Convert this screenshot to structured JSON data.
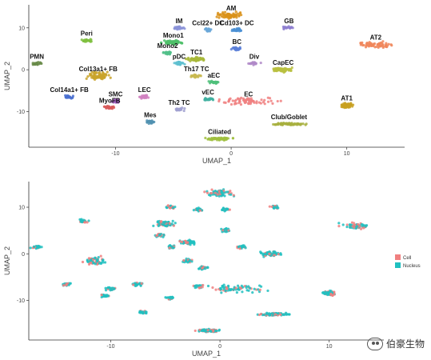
{
  "chart_data": [
    {
      "type": "scatter",
      "xlabel": "UMAP_1",
      "ylabel": "UMAP_2",
      "xlim": [
        -17.5,
        15
      ],
      "ylim": [
        -18.5,
        15.5
      ],
      "xticks": [
        -10,
        0,
        10
      ],
      "yticks": [
        -10,
        0,
        10
      ],
      "grid": false,
      "legend": "none",
      "clusters": [
        {
          "name": "AM",
          "x": 0,
          "y": 13,
          "color": "#d9921a"
        },
        {
          "name": "IM",
          "x": -4.5,
          "y": 10,
          "color": "#8a92d8"
        },
        {
          "name": "Ccl22+ DC",
          "x": -2,
          "y": 9.5,
          "color": "#6aa7d8"
        },
        {
          "name": "Cd103+ DC",
          "x": 0.5,
          "y": 9.5,
          "color": "#4a8fd4"
        },
        {
          "name": "GB",
          "x": 5,
          "y": 10,
          "color": "#8e7fd0"
        },
        {
          "name": "AT2",
          "x": 12.5,
          "y": 6,
          "color": "#f0865a"
        },
        {
          "name": "Peri",
          "x": -12.5,
          "y": 7,
          "color": "#7fbf3f"
        },
        {
          "name": "PMN",
          "x": -16.8,
          "y": 1.5,
          "color": "#6a8c4a"
        },
        {
          "name": "Mono1",
          "x": -5,
          "y": 6.5,
          "color": "#4fbf6a"
        },
        {
          "name": "Mono2",
          "x": -5.5,
          "y": 4,
          "color": "#52c08a"
        },
        {
          "name": "BC",
          "x": 0.5,
          "y": 5,
          "color": "#5a7fd8"
        },
        {
          "name": "TC1",
          "x": -3,
          "y": 2.5,
          "color": "#a8b83a"
        },
        {
          "name": "pDC",
          "x": -4.5,
          "y": 1.5,
          "color": "#5fbfd0"
        },
        {
          "name": "Div",
          "x": 2,
          "y": 1.5,
          "color": "#b08ac8"
        },
        {
          "name": "Col13a1+ FB",
          "x": -11.5,
          "y": -1.5,
          "color": "#c9a32a"
        },
        {
          "name": "Th17 TC",
          "x": -3,
          "y": -1.5,
          "color": "#c8b850"
        },
        {
          "name": "aEC",
          "x": -1.5,
          "y": -3,
          "color": "#4fc07a"
        },
        {
          "name": "CapEC",
          "x": 4.5,
          "y": 0,
          "color": "#b8c040"
        },
        {
          "name": "LEC",
          "x": -7.5,
          "y": -6.5,
          "color": "#d080c0"
        },
        {
          "name": "SMC",
          "x": -10,
          "y": -7.5,
          "color": "#a060c0"
        },
        {
          "name": "Col14a1+ FB",
          "x": -14,
          "y": -6.5,
          "color": "#4a70d0"
        },
        {
          "name": "MyoFB",
          "x": -10.5,
          "y": -9,
          "color": "#d85a5a"
        },
        {
          "name": "EC",
          "x": 1.5,
          "y": -7.5,
          "color": "#f08080"
        },
        {
          "name": "vEC",
          "x": -2,
          "y": -7,
          "color": "#40b0a0"
        },
        {
          "name": "Th2 TC",
          "x": -4.5,
          "y": -9.5,
          "color": "#a0a0d0"
        },
        {
          "name": "AT1",
          "x": 10,
          "y": -8.5,
          "color": "#c8a020"
        },
        {
          "name": "Club/Goblet",
          "x": 5,
          "y": -13,
          "color": "#a8b040"
        },
        {
          "name": "Mes",
          "x": -7,
          "y": -12.5,
          "color": "#5090b0"
        },
        {
          "name": "Ciliated",
          "x": -1,
          "y": -16.5,
          "color": "#a0c040"
        }
      ]
    },
    {
      "type": "scatter",
      "xlabel": "UMAP_1",
      "ylabel": "UMAP_2",
      "xlim": [
        -17.5,
        15
      ],
      "ylim": [
        -18.5,
        15.5
      ],
      "xticks": [
        -10,
        0,
        10
      ],
      "yticks": [
        -10,
        0,
        10
      ],
      "grid": false,
      "legend": "right",
      "series": [
        {
          "name": "Cell",
          "color": "#f08080"
        },
        {
          "name": "Nucleus",
          "color": "#20c0c0"
        }
      ]
    }
  ],
  "watermark": {
    "text": "伯豪生物"
  }
}
